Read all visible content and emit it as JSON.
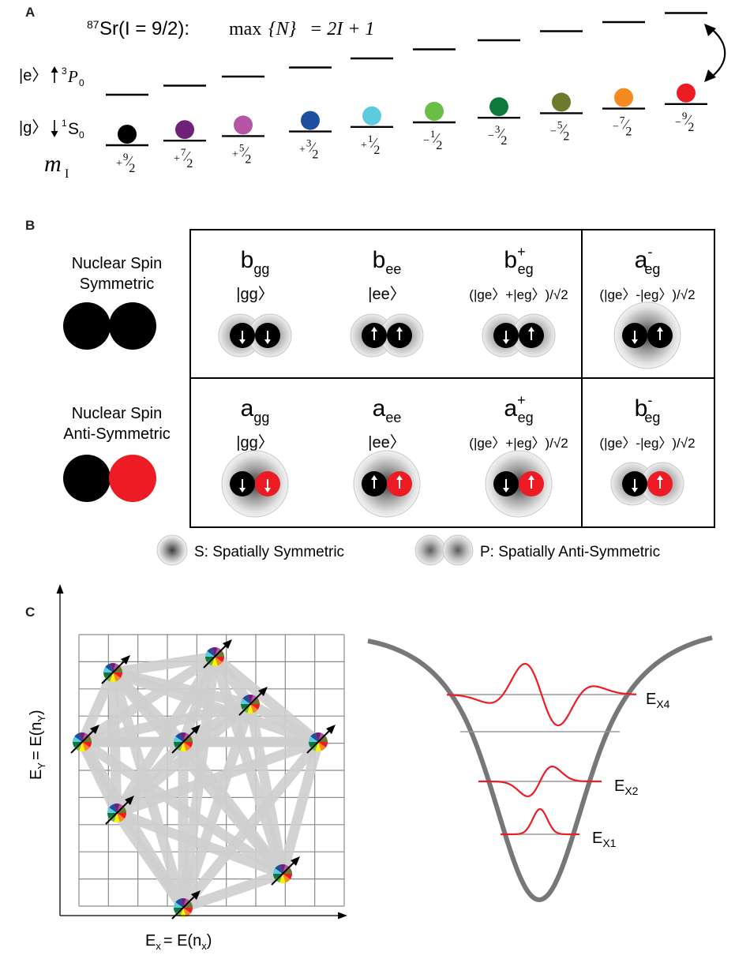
{
  "panel_labels": {
    "a": "A",
    "b": "B",
    "c": "C"
  },
  "panel_a": {
    "formula_isotope_sup": "87",
    "formula_isotope": "Sr(I = 9/2):",
    "formula_max": "max",
    "formula_N": "{N}",
    "formula_rhs": "= 2I + 1",
    "excited_ket": "|e〉",
    "excited_term_sup": "3",
    "excited_term": "P",
    "excited_term_sub": "0",
    "ground_ket": "|g〉",
    "ground_term_sup": "1",
    "ground_term": "S",
    "ground_term_sub": "0",
    "mi_label": "m",
    "mi_sub": "I",
    "levels": [
      {
        "sign": "+",
        "num": "9",
        "den": "2",
        "color": "#000000"
      },
      {
        "sign": "+",
        "num": "7",
        "den": "2",
        "color": "#6d2177"
      },
      {
        "sign": "+",
        "num": "5",
        "den": "2",
        "color": "#b553a5"
      },
      {
        "sign": "+",
        "num": "3",
        "den": "2",
        "color": "#1d4fa1"
      },
      {
        "sign": "+",
        "num": "1",
        "den": "2",
        "color": "#5ccbe0"
      },
      {
        "sign": "−",
        "num": "1",
        "den": "2",
        "color": "#6abd45"
      },
      {
        "sign": "−",
        "num": "3",
        "den": "2",
        "color": "#0d7a3a"
      },
      {
        "sign": "−",
        "num": "5",
        "den": "2",
        "color": "#6d7a2d"
      },
      {
        "sign": "−",
        "num": "7",
        "den": "2",
        "color": "#f58a22"
      },
      {
        "sign": "−",
        "num": "9",
        "den": "2",
        "color": "#ed1c24"
      }
    ]
  },
  "panel_b": {
    "row_labels": [
      {
        "line1": "Nuclear Spin",
        "line2": "Symmetric",
        "colors": [
          "#000000",
          "#000000"
        ]
      },
      {
        "line1": "Nuclear Spin",
        "line2": "Anti-Symmetric",
        "colors": [
          "#000000",
          "#ed1c24"
        ]
      }
    ],
    "cells": [
      [
        {
          "sym": "b",
          "sub": "gg",
          "sup": "",
          "ket": "|gg〉"
        },
        {
          "sym": "b",
          "sub": "ee",
          "sup": "",
          "ket": "|ee〉"
        },
        {
          "sym": "b",
          "sub": "eg",
          "sup": "+",
          "ket": "(|ge〉+|eg〉)/√2"
        },
        {
          "sym": "a",
          "sub": "eg",
          "sup": "-",
          "ket": "(|ge〉-|eg〉)/√2"
        }
      ],
      [
        {
          "sym": "a",
          "sub": "gg",
          "sup": "",
          "ket": "|gg〉"
        },
        {
          "sym": "a",
          "sub": "ee",
          "sup": "",
          "ket": "|ee〉"
        },
        {
          "sym": "a",
          "sub": "eg",
          "sup": "+",
          "ket": "(|ge〉+|eg〉)/√2"
        },
        {
          "sym": "b",
          "sub": "eg",
          "sup": "-",
          "ket": "(|ge〉-|eg〉)/√2"
        }
      ]
    ],
    "legend_s": "S: Spatially Symmetric",
    "legend_p": "P: Spatially Anti-Symmetric"
  },
  "panel_c": {
    "y_axis_label": "E",
    "y_axis_sub": "Y",
    "y_axis_rhs": "= E(n",
    "y_axis_rhs_sub": "Y",
    "x_axis_label": "E",
    "x_axis_sub": "x",
    "x_axis_rhs": "= E(n",
    "x_axis_rhs_sub": "x",
    "energy_labels": [
      {
        "main": "E",
        "sub": "X4"
      },
      {
        "main": "E",
        "sub": "X2"
      },
      {
        "main": "E",
        "sub": "X1"
      }
    ],
    "wheel_colors": [
      "#ed1c24",
      "#f58a22",
      "#fff200",
      "#6abd45",
      "#0d7a3a",
      "#5ccbe0",
      "#1d4fa1",
      "#6d2177",
      "#b553a5",
      "#6d7a2d"
    ]
  }
}
